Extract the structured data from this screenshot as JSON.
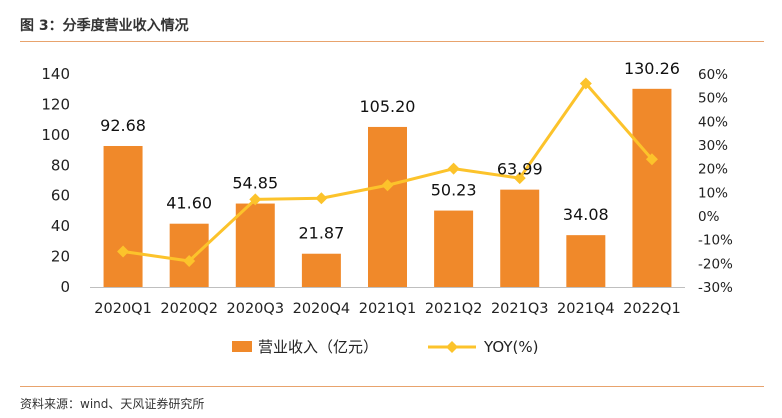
{
  "header": {
    "title": "图 3：分季度营业收入情况"
  },
  "footer": {
    "source": "资料来源：wind、天风证券研究所"
  },
  "colors": {
    "bar": "#f0892a",
    "line": "#fcc32b",
    "rule": "#e8a36d"
  },
  "chart_data": {
    "type": "bar",
    "categories": [
      "2020Q1",
      "2020Q2",
      "2020Q3",
      "2020Q4",
      "2021Q1",
      "2021Q2",
      "2021Q3",
      "2021Q4",
      "2022Q1"
    ],
    "series": [
      {
        "name": "营业收入（亿元）",
        "type": "bar",
        "axis": "left",
        "values": [
          92.68,
          41.6,
          54.85,
          21.87,
          105.2,
          50.23,
          63.99,
          34.08,
          130.26
        ],
        "labels": [
          "92.68",
          "41.60",
          "54.85",
          "21.87",
          "105.20",
          "50.23",
          "63.99",
          "34.08",
          "130.26"
        ]
      },
      {
        "name": "YOY(%)",
        "type": "line",
        "axis": "right",
        "values": [
          -15,
          -19,
          7,
          7.5,
          13,
          20,
          16,
          56,
          24
        ]
      }
    ],
    "ylim": [
      0,
      140
    ],
    "yticks": [
      "0",
      "20",
      "40",
      "60",
      "80",
      "100",
      "120",
      "140"
    ],
    "y2lim": [
      -30,
      60
    ],
    "y2ticks": [
      "-30%",
      "-20%",
      "-10%",
      "0%",
      "10%",
      "20%",
      "30%",
      "40%",
      "50%",
      "60%"
    ],
    "legend": "bottom",
    "grid": false
  }
}
